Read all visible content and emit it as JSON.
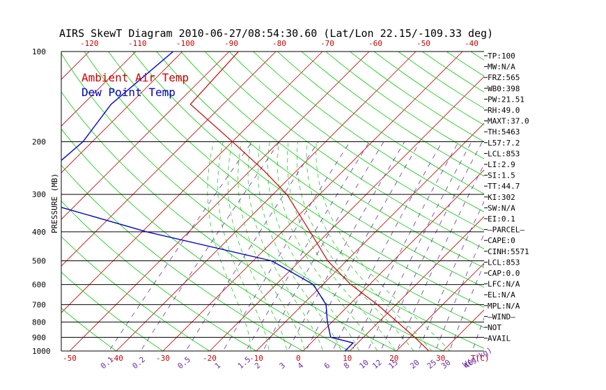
{
  "chart_data": {
    "type": "line",
    "title": "AIRS SkewT Diagram 2010-06-27/08:54:30.60 (Lat/Lon 22.15/-109.33 deg)",
    "ylabel": "PRESSURE (MB)",
    "xlabel_bottom": "T(C)",
    "mixing_ratio_label": "W(g/kg)",
    "pressure_ticks": [
      100,
      200,
      300,
      400,
      500,
      600,
      700,
      800,
      900,
      1000
    ],
    "temp_ticks_bottom": [
      "-50",
      "-40",
      "-30",
      "-20",
      "-10",
      "0",
      "10",
      "20",
      "30"
    ],
    "temp_ticks_top": [
      "-120",
      "-110",
      "-100",
      "-90",
      "-80",
      "-70",
      "-60",
      "-50",
      "-40"
    ],
    "mixing_ratio_ticks": [
      "0.1",
      "0.2",
      "0.5",
      "1",
      "1.5",
      "2",
      "3",
      "4",
      "6",
      "8",
      "10",
      "12",
      "15",
      "20",
      "25",
      "30",
      "40"
    ],
    "series": [
      {
        "name": "Ambient Air Temp",
        "color": "#cc0000",
        "points": [
          {
            "p": 100,
            "t": -78
          },
          {
            "p": 150,
            "t": -77
          },
          {
            "p": 200,
            "t": -60
          },
          {
            "p": 250,
            "t": -47
          },
          {
            "p": 300,
            "t": -37
          },
          {
            "p": 400,
            "t": -24
          },
          {
            "p": 500,
            "t": -14
          },
          {
            "p": 600,
            "t": -4
          },
          {
            "p": 700,
            "t": 6
          },
          {
            "p": 800,
            "t": 14
          },
          {
            "p": 900,
            "t": 21
          },
          {
            "p": 1000,
            "t": 27
          }
        ]
      },
      {
        "name": "Dew Point Temp",
        "color": "#0000cc",
        "points": [
          {
            "p": 100,
            "t": -92
          },
          {
            "p": 150,
            "t": -94
          },
          {
            "p": 200,
            "t": -92
          },
          {
            "p": 250,
            "t": -93
          },
          {
            "p": 300,
            "t": -95
          },
          {
            "p": 400,
            "t": -59
          },
          {
            "p": 500,
            "t": -26
          },
          {
            "p": 600,
            "t": -12
          },
          {
            "p": 700,
            "t": -5
          },
          {
            "p": 800,
            "t": -1
          },
          {
            "p": 900,
            "t": 3
          },
          {
            "p": 940,
            "t": 9
          },
          {
            "p": 1000,
            "t": 9
          }
        ]
      }
    ],
    "indices": [
      "TP:100",
      "MW:N/A",
      "FRZ:565",
      "WB0:398",
      "PW:21.51",
      "RH:49.0",
      "MAXT:37.0",
      "TH:5463",
      "L57:7.2",
      "LCL:853",
      "LI:2.9",
      "SI:1.5",
      "TT:44.7",
      "KI:302",
      "SW:N/A",
      "EI:0.1",
      "–PARCEL–",
      "CAPE:0",
      "CINH:5571",
      "LCL:853",
      "CAP:0.0",
      "LFC:N/A",
      "EL:N/A",
      "MPL:N/A",
      "–WIND–",
      "NOT",
      "AVAIL"
    ],
    "colors": {
      "isotherm": "#cc0000",
      "dry_adiabat": "#00cc00",
      "moist_adiabat": "#00cc00",
      "mixing_ratio": "#6a2da8",
      "isobar": "#000000"
    }
  }
}
